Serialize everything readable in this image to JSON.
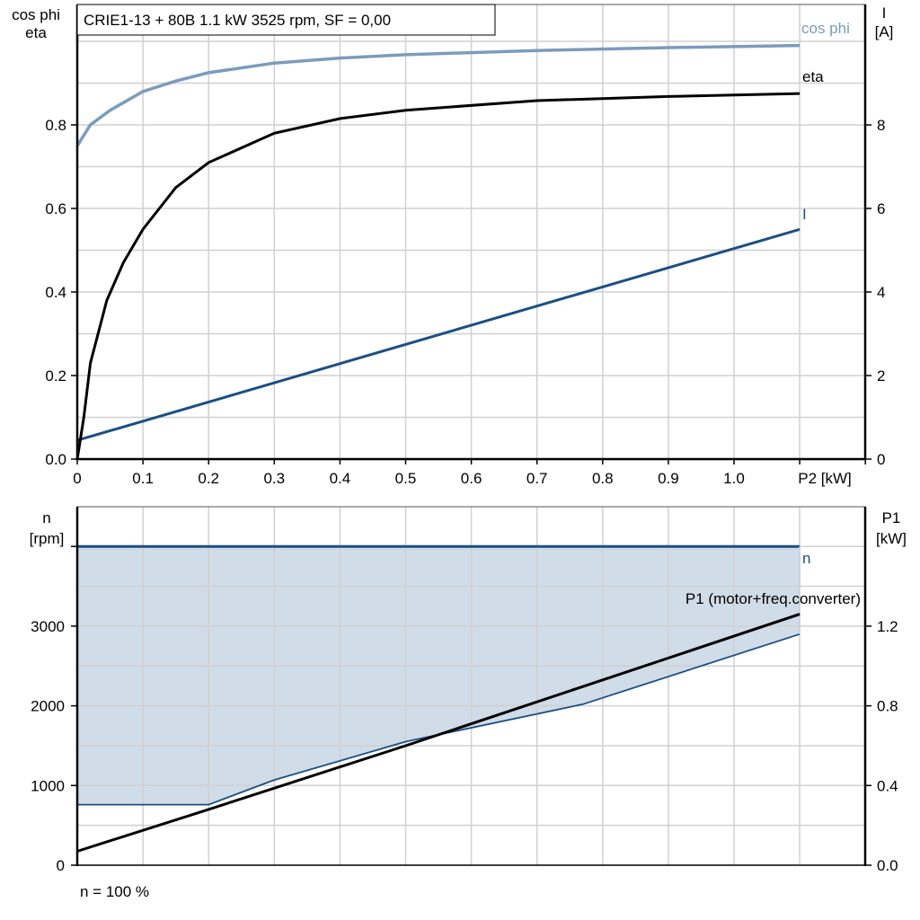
{
  "title": "CRIE1-13 + 80B   1.1 kW   3525 rpm, SF = 0,00",
  "footer": "n = 100 %",
  "colors": {
    "cos_phi": "#7a9cbd",
    "eta": "#000000",
    "current": "#1b4f82",
    "speed": "#1b4f82",
    "p1": "#000000",
    "fill": "#d0dce8",
    "grid": "#d0d0d0"
  },
  "top_chart": {
    "left_axis_label_1": "cos phi",
    "left_axis_label_2": "eta",
    "right_axis_label_1": "I",
    "right_axis_label_2": "[A]",
    "x_axis_label": "P2 [kW]",
    "x_ticks": [
      "0",
      "0.1",
      "0.2",
      "0.3",
      "0.4",
      "0.5",
      "0.6",
      "0.7",
      "0.8",
      "0.9",
      "1.0"
    ],
    "left_ticks": [
      "0.0",
      "0.2",
      "0.4",
      "0.6",
      "0.8"
    ],
    "right_ticks": [
      "0",
      "2",
      "4",
      "6",
      "8"
    ],
    "curve_labels": {
      "cos_phi": "cos phi",
      "eta": "eta",
      "current": "I"
    }
  },
  "bottom_chart": {
    "left_axis_label_1": "n",
    "left_axis_label_2": "[rpm]",
    "right_axis_label_1": "P1",
    "right_axis_label_2": "[kW]",
    "left_ticks": [
      "0",
      "1000",
      "2000",
      "3000"
    ],
    "right_ticks": [
      "0.0",
      "0.4",
      "0.8",
      "1.2"
    ],
    "curve_labels": {
      "speed": "n",
      "p1": "P1 (motor+freq.converter)"
    }
  },
  "chart_data": [
    {
      "type": "line",
      "title": "CRIE1-13 + 80B   1.1 kW   3525 rpm, SF = 0,00",
      "xlabel": "P2 [kW]",
      "ylabel": "cos phi / eta",
      "y2label": "I [A]",
      "xlim": [
        0,
        1.2
      ],
      "ylim": [
        0,
        1.08
      ],
      "y2lim": [
        0,
        10.8
      ],
      "grid": true,
      "series": [
        {
          "name": "cos phi",
          "axis": "left",
          "x": [
            0,
            0.02,
            0.05,
            0.1,
            0.15,
            0.2,
            0.3,
            0.4,
            0.5,
            0.7,
            0.9,
            1.1
          ],
          "y": [
            0.75,
            0.8,
            0.835,
            0.88,
            0.905,
            0.925,
            0.948,
            0.96,
            0.968,
            0.978,
            0.985,
            0.99
          ]
        },
        {
          "name": "eta",
          "axis": "left",
          "x": [
            0,
            0.01,
            0.02,
            0.045,
            0.07,
            0.1,
            0.15,
            0.2,
            0.3,
            0.4,
            0.5,
            0.7,
            0.9,
            1.1
          ],
          "y": [
            0,
            0.1,
            0.23,
            0.38,
            0.47,
            0.55,
            0.65,
            0.71,
            0.78,
            0.815,
            0.835,
            0.858,
            0.868,
            0.875
          ]
        },
        {
          "name": "I",
          "axis": "right",
          "x": [
            0,
            1.1
          ],
          "y": [
            0.45,
            5.5
          ]
        }
      ]
    },
    {
      "type": "area",
      "xlabel": "P2 [kW]",
      "ylabel": "n [rpm]",
      "y2label": "P1 [kW]",
      "xlim": [
        0,
        1.2
      ],
      "ylim": [
        0,
        4500
      ],
      "y2lim": [
        0,
        1.8
      ],
      "grid": true,
      "annotation": "n = 100 %",
      "series": [
        {
          "name": "n (max)",
          "axis": "left",
          "x": [
            0,
            1.1
          ],
          "y": [
            4000,
            4000
          ]
        },
        {
          "name": "n (min)",
          "axis": "left",
          "x": [
            0,
            0.2,
            0.3,
            0.5,
            0.77,
            1.1
          ],
          "y": [
            760,
            760,
            1070,
            1550,
            2020,
            2900
          ]
        },
        {
          "name": "P1 (motor+freq.converter)",
          "axis": "right",
          "x": [
            0,
            0.2,
            0.5,
            0.8,
            1.1
          ],
          "y": [
            0.07,
            0.28,
            0.6,
            0.93,
            1.26
          ]
        }
      ]
    }
  ]
}
